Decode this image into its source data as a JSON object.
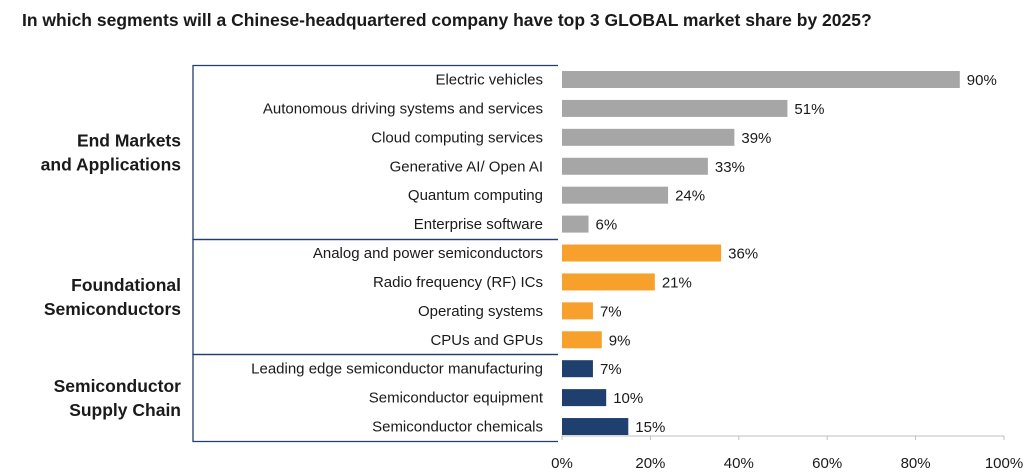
{
  "chart_data": {
    "type": "bar",
    "orientation": "horizontal",
    "title": "In which segments will a Chinese-headquartered company have top 3 GLOBAL market share by 2025?",
    "xlim": [
      0,
      100
    ],
    "xticks": [
      "0%",
      "20%",
      "40%",
      "60%",
      "80%",
      "100%"
    ],
    "value_suffix": "%",
    "groups": [
      {
        "name_lines": [
          "End Markets",
          "and Applications"
        ],
        "color": "#a6a6a6",
        "items": [
          {
            "label": "Electric vehicles",
            "value": 90
          },
          {
            "label": "Autonomous driving systems and services",
            "value": 51
          },
          {
            "label": "Cloud computing services",
            "value": 39
          },
          {
            "label": "Generative AI/ Open AI",
            "value": 33
          },
          {
            "label": "Quantum computing",
            "value": 24
          },
          {
            "label": "Enterprise software",
            "value": 6
          }
        ]
      },
      {
        "name_lines": [
          "Foundational",
          "Semiconductors"
        ],
        "color": "#f7a12c",
        "items": [
          {
            "label": "Analog and power semiconductors",
            "value": 36
          },
          {
            "label": "Radio frequency (RF) ICs",
            "value": 21
          },
          {
            "label": "Operating systems",
            "value": 7
          },
          {
            "label": "CPUs and GPUs",
            "value": 9
          }
        ]
      },
      {
        "name_lines": [
          "Semiconductor",
          "Supply Chain"
        ],
        "color": "#1f3f6e",
        "items": [
          {
            "label": "Leading edge semiconductor manufacturing",
            "value": 7
          },
          {
            "label": "Semiconductor equipment",
            "value": 10
          },
          {
            "label": "Semiconductor chemicals",
            "value": 15
          }
        ]
      }
    ]
  }
}
